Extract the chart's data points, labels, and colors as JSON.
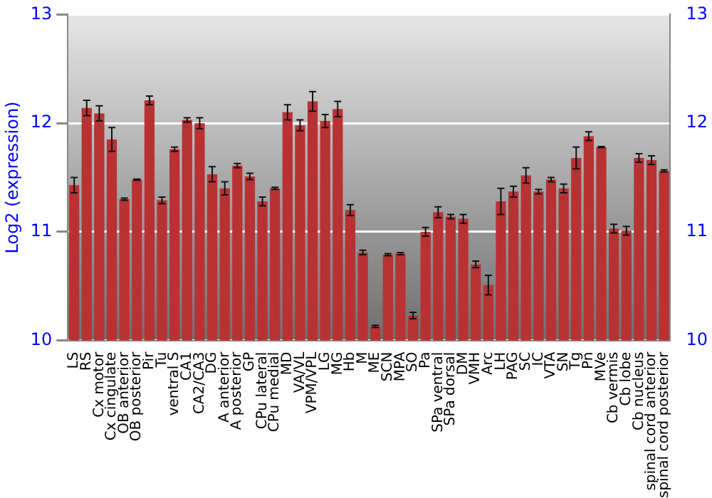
{
  "chart_data": {
    "type": "bar",
    "ylabel": "Log2 (expression)",
    "categories": [
      "LS",
      "RS",
      "Cx motor",
      "Cx cingulate",
      "OB anterior",
      "OB posterior",
      "Pir",
      "Tu",
      "ventral S",
      "CA1",
      "CA2/CA3",
      "DG",
      "A anterior",
      "A posterior",
      "GP",
      "CPu lateral",
      "CPu medial",
      "MD",
      "VA/VL",
      "VPM/VPL",
      "LG",
      "MG",
      "Hb",
      "M",
      "ME",
      "SCN",
      "MPA",
      "SO",
      "Pa",
      "SPa ventral",
      "SPa dorsal",
      "DM",
      "VMH",
      "Arc",
      "LH",
      "PAG",
      "SC",
      "IC",
      "VTA",
      "SN",
      "Tg",
      "Pn",
      "MVe",
      "Cb vermis",
      "Cb lobe",
      "Cb nucleus",
      "spinal cord anterior",
      "spinal cord posterior"
    ],
    "series": [
      {
        "color": "#b83234",
        "values": [
          11.43,
          12.14,
          12.09,
          11.85,
          11.3,
          11.48,
          12.21,
          11.29,
          11.76,
          12.03,
          12.0,
          11.53,
          11.4,
          11.61,
          11.51,
          11.28,
          11.4,
          12.1,
          11.98,
          12.2,
          12.02,
          12.13,
          11.2,
          10.81,
          10.13,
          10.79,
          10.8,
          10.23,
          11.0,
          11.18,
          11.14,
          11.12,
          10.7,
          10.51,
          11.28,
          11.37,
          11.52,
          11.37,
          11.48,
          11.4,
          11.68,
          11.88,
          11.78,
          11.03,
          11.01,
          11.68,
          11.66,
          11.56
        ],
        "errors": [
          0.07,
          0.07,
          0.07,
          0.11,
          0.01,
          0.005,
          0.04,
          0.03,
          0.02,
          0.02,
          0.05,
          0.07,
          0.06,
          0.02,
          0.03,
          0.04,
          0.01,
          0.07,
          0.05,
          0.09,
          0.06,
          0.07,
          0.05,
          0.02,
          0.01,
          0.01,
          0.01,
          0.03,
          0.04,
          0.05,
          0.02,
          0.04,
          0.03,
          0.09,
          0.12,
          0.05,
          0.07,
          0.02,
          0.02,
          0.04,
          0.1,
          0.04,
          0.005,
          0.04,
          0.04,
          0.04,
          0.04,
          0.01
        ]
      }
    ],
    "ylim": [
      10,
      13
    ],
    "yticks": [
      10,
      11,
      12,
      13
    ],
    "y2lim": [
      10,
      13
    ],
    "y2ticks": [
      10,
      11,
      12,
      13
    ],
    "grid": "y",
    "legend": false
  }
}
